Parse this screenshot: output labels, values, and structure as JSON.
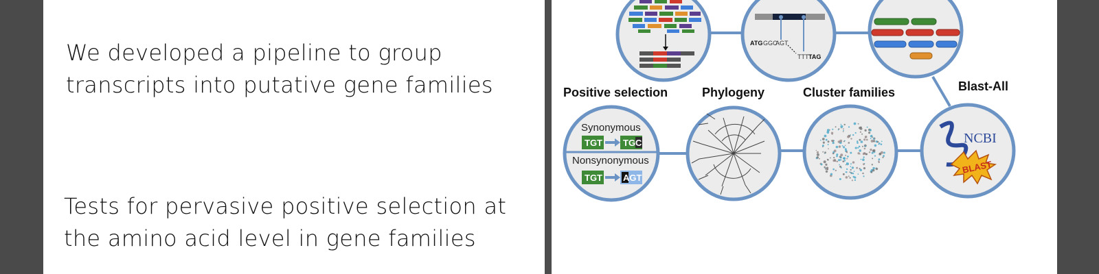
{
  "left_slide": {
    "bullet1": [
      "We developed a pipeline to group",
      "transcripts into putative gene families"
    ],
    "bullet2": [
      "Tests for pervasive positive selection at",
      "the amino acid level in gene families"
    ]
  },
  "pipeline": {
    "labels": {
      "positive_selection": "Positive selection",
      "phylogeny": "Phylogeny",
      "cluster_families": "Cluster families",
      "blast_all": "Blast-All"
    },
    "alignment": {
      "codon1": "ATG",
      "codon2": "GGC",
      "codon3": "AGT",
      "codon4": "TTT",
      "codon5": "TAG"
    },
    "selection": {
      "synonymous": "Synonymous",
      "nonsynonymous": "Nonsynonymous",
      "syn_from": "TGT",
      "syn_to": "TGC",
      "non_from": "TGT",
      "non_to": "AGT"
    },
    "ncbi": "NCBI",
    "blast": "BLAST"
  },
  "colors": {
    "circle_stroke": "#6b93c4",
    "green": "#3f8a36",
    "red": "#d03a2c",
    "blue": "#3f7fd9",
    "orange": "#e0902c",
    "purple": "#5c3e8f"
  }
}
